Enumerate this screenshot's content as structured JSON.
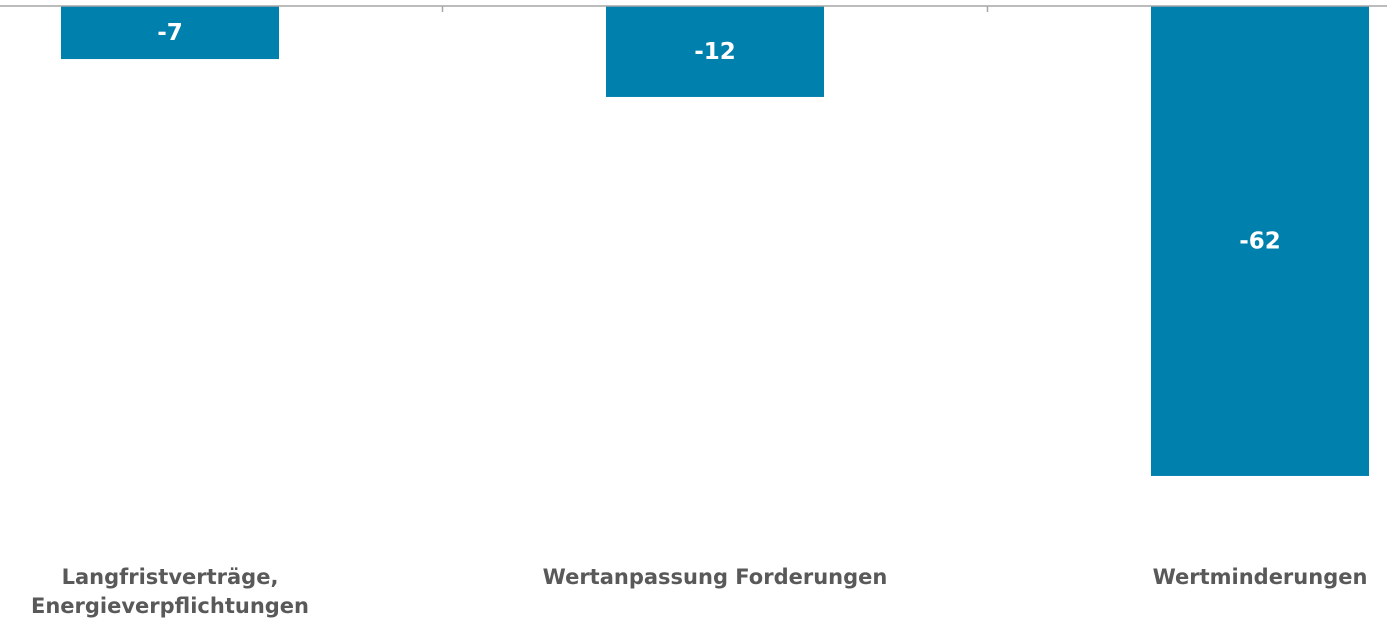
{
  "chart_data": {
    "type": "bar",
    "categories": [
      "Langfristverträge,\nEnergieverpflichtungen",
      "Wertanpassung Forderungen",
      "Wertminderungen"
    ],
    "values": [
      -7,
      -12,
      -62
    ],
    "color": "#0080ad",
    "ylim": [
      -70,
      0
    ]
  }
}
